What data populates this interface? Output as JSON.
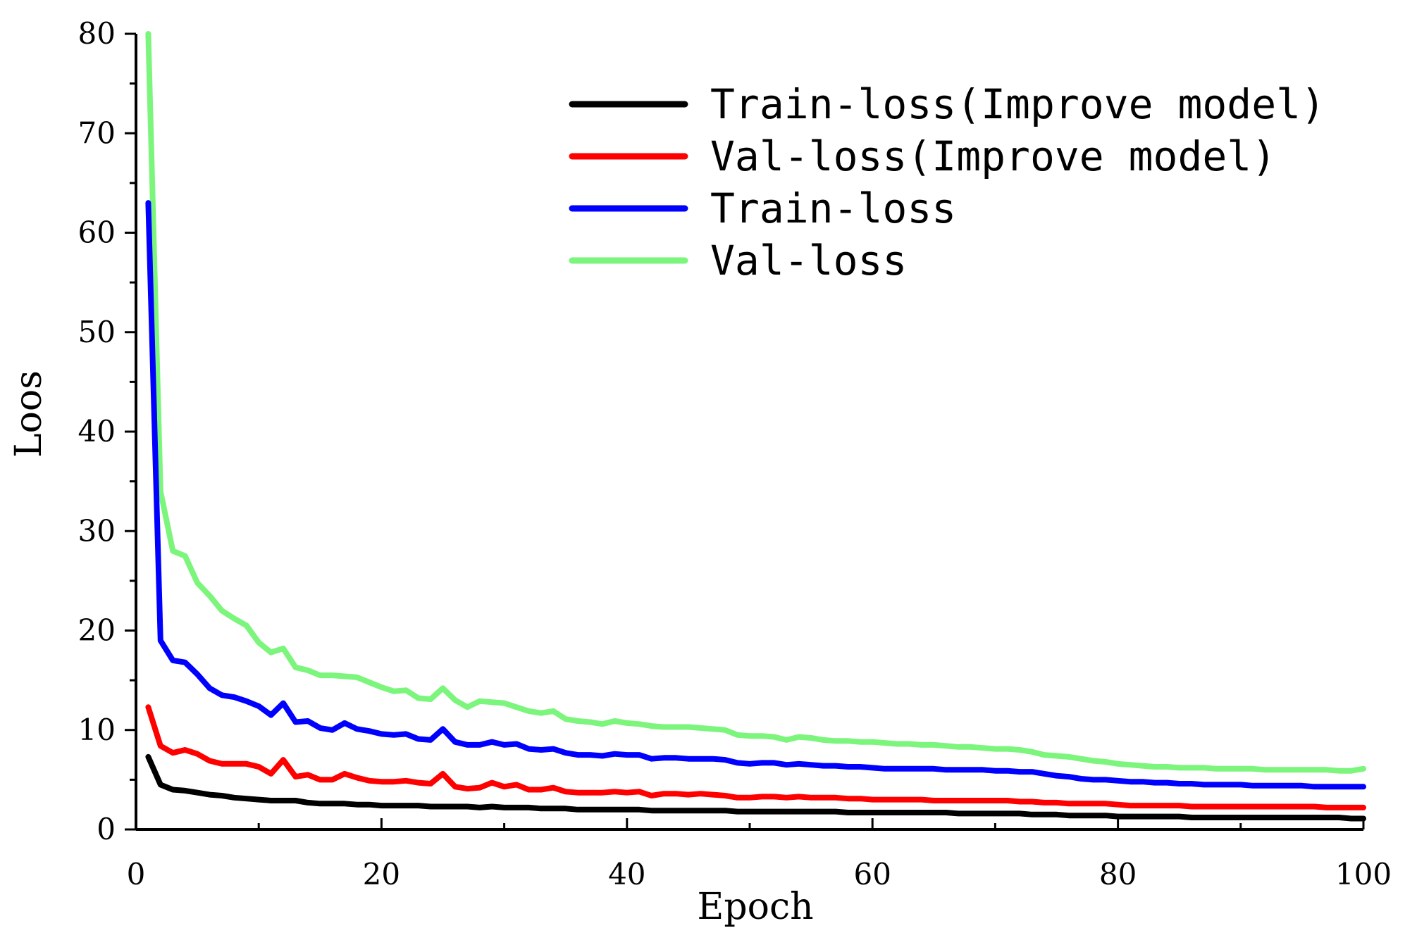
{
  "chart_data": {
    "type": "line",
    "title": "",
    "xlabel": "Epoch",
    "ylabel": "Loos",
    "xlim": [
      0,
      100
    ],
    "ylim": [
      0,
      80
    ],
    "x_ticks": [
      0,
      20,
      40,
      60,
      80,
      100
    ],
    "y_ticks": [
      0,
      10,
      20,
      30,
      40,
      50,
      60,
      70,
      80
    ],
    "grid": false,
    "legend_position": "top-right",
    "x": [
      1,
      2,
      3,
      4,
      5,
      6,
      7,
      8,
      9,
      10,
      11,
      12,
      13,
      14,
      15,
      16,
      17,
      18,
      19,
      20,
      21,
      22,
      23,
      24,
      25,
      26,
      27,
      28,
      29,
      30,
      31,
      32,
      33,
      34,
      35,
      36,
      37,
      38,
      39,
      40,
      41,
      42,
      43,
      44,
      45,
      46,
      47,
      48,
      49,
      50,
      51,
      52,
      53,
      54,
      55,
      56,
      57,
      58,
      59,
      60,
      61,
      62,
      63,
      64,
      65,
      66,
      67,
      68,
      69,
      70,
      71,
      72,
      73,
      74,
      75,
      76,
      77,
      78,
      79,
      80,
      81,
      82,
      83,
      84,
      85,
      86,
      87,
      88,
      89,
      90,
      91,
      92,
      93,
      94,
      95,
      96,
      97,
      98,
      99,
      100
    ],
    "series": [
      {
        "name": "Train-loss(Improve model)",
        "color": "#000000",
        "values": [
          7.3,
          4.5,
          4.0,
          3.9,
          3.7,
          3.5,
          3.4,
          3.2,
          3.1,
          3.0,
          2.9,
          2.9,
          2.9,
          2.7,
          2.6,
          2.6,
          2.6,
          2.5,
          2.5,
          2.4,
          2.4,
          2.4,
          2.4,
          2.3,
          2.3,
          2.3,
          2.3,
          2.2,
          2.3,
          2.2,
          2.2,
          2.2,
          2.1,
          2.1,
          2.1,
          2.0,
          2.0,
          2.0,
          2.0,
          2.0,
          2.0,
          1.9,
          1.9,
          1.9,
          1.9,
          1.9,
          1.9,
          1.9,
          1.8,
          1.8,
          1.8,
          1.8,
          1.8,
          1.8,
          1.8,
          1.8,
          1.8,
          1.7,
          1.7,
          1.7,
          1.7,
          1.7,
          1.7,
          1.7,
          1.7,
          1.7,
          1.6,
          1.6,
          1.6,
          1.6,
          1.6,
          1.6,
          1.5,
          1.5,
          1.5,
          1.4,
          1.4,
          1.4,
          1.4,
          1.3,
          1.3,
          1.3,
          1.3,
          1.3,
          1.3,
          1.2,
          1.2,
          1.2,
          1.2,
          1.2,
          1.2,
          1.2,
          1.2,
          1.2,
          1.2,
          1.2,
          1.2,
          1.2,
          1.1,
          1.1
        ]
      },
      {
        "name": "Val-loss(Improve model)",
        "color": "#ff0000",
        "values": [
          12.3,
          8.4,
          7.7,
          8.0,
          7.6,
          6.9,
          6.6,
          6.6,
          6.6,
          6.3,
          5.6,
          7.0,
          5.3,
          5.5,
          5.0,
          5.0,
          5.6,
          5.2,
          4.9,
          4.8,
          4.8,
          4.9,
          4.7,
          4.6,
          5.6,
          4.3,
          4.1,
          4.2,
          4.7,
          4.3,
          4.5,
          4.0,
          4.0,
          4.2,
          3.8,
          3.7,
          3.7,
          3.7,
          3.8,
          3.7,
          3.8,
          3.4,
          3.6,
          3.6,
          3.5,
          3.6,
          3.5,
          3.4,
          3.2,
          3.2,
          3.3,
          3.3,
          3.2,
          3.3,
          3.2,
          3.2,
          3.2,
          3.1,
          3.1,
          3.0,
          3.0,
          3.0,
          3.0,
          3.0,
          2.9,
          2.9,
          2.9,
          2.9,
          2.9,
          2.9,
          2.9,
          2.8,
          2.8,
          2.7,
          2.7,
          2.6,
          2.6,
          2.6,
          2.6,
          2.5,
          2.4,
          2.4,
          2.4,
          2.4,
          2.4,
          2.3,
          2.3,
          2.3,
          2.3,
          2.3,
          2.3,
          2.3,
          2.3,
          2.3,
          2.3,
          2.3,
          2.2,
          2.2,
          2.2,
          2.2
        ]
      },
      {
        "name": "Train-loss",
        "color": "#0000ff",
        "values": [
          63.0,
          19.0,
          17.0,
          16.8,
          15.6,
          14.2,
          13.5,
          13.3,
          12.9,
          12.4,
          11.5,
          12.7,
          10.8,
          10.9,
          10.2,
          10.0,
          10.7,
          10.1,
          9.9,
          9.6,
          9.5,
          9.6,
          9.1,
          9.0,
          10.1,
          8.8,
          8.5,
          8.5,
          8.8,
          8.5,
          8.6,
          8.1,
          8.0,
          8.1,
          7.7,
          7.5,
          7.5,
          7.4,
          7.6,
          7.5,
          7.5,
          7.1,
          7.2,
          7.2,
          7.1,
          7.1,
          7.1,
          7.0,
          6.7,
          6.6,
          6.7,
          6.7,
          6.5,
          6.6,
          6.5,
          6.4,
          6.4,
          6.3,
          6.3,
          6.2,
          6.1,
          6.1,
          6.1,
          6.1,
          6.1,
          6.0,
          6.0,
          6.0,
          6.0,
          5.9,
          5.9,
          5.8,
          5.8,
          5.6,
          5.4,
          5.3,
          5.1,
          5.0,
          5.0,
          4.9,
          4.8,
          4.8,
          4.7,
          4.7,
          4.6,
          4.6,
          4.5,
          4.5,
          4.5,
          4.5,
          4.4,
          4.4,
          4.4,
          4.4,
          4.4,
          4.3,
          4.3,
          4.3,
          4.3,
          4.3
        ]
      },
      {
        "name": "Val-loss",
        "color": "#7bf57b",
        "values": [
          80.0,
          34.0,
          28.0,
          27.5,
          24.8,
          23.5,
          22.0,
          21.2,
          20.5,
          18.8,
          17.8,
          18.2,
          16.3,
          16.0,
          15.5,
          15.5,
          15.4,
          15.3,
          14.8,
          14.3,
          13.9,
          14.0,
          13.2,
          13.1,
          14.2,
          13.0,
          12.3,
          12.9,
          12.8,
          12.7,
          12.3,
          11.9,
          11.7,
          11.9,
          11.1,
          10.9,
          10.8,
          10.6,
          10.9,
          10.7,
          10.6,
          10.4,
          10.3,
          10.3,
          10.3,
          10.2,
          10.1,
          10.0,
          9.5,
          9.4,
          9.4,
          9.3,
          9.0,
          9.3,
          9.2,
          9.0,
          8.9,
          8.9,
          8.8,
          8.8,
          8.7,
          8.6,
          8.6,
          8.5,
          8.5,
          8.4,
          8.3,
          8.3,
          8.2,
          8.1,
          8.1,
          8.0,
          7.8,
          7.5,
          7.4,
          7.3,
          7.1,
          6.9,
          6.8,
          6.6,
          6.5,
          6.4,
          6.3,
          6.3,
          6.2,
          6.2,
          6.2,
          6.1,
          6.1,
          6.1,
          6.1,
          6.0,
          6.0,
          6.0,
          6.0,
          6.0,
          6.0,
          5.9,
          5.9,
          6.1
        ]
      }
    ]
  }
}
